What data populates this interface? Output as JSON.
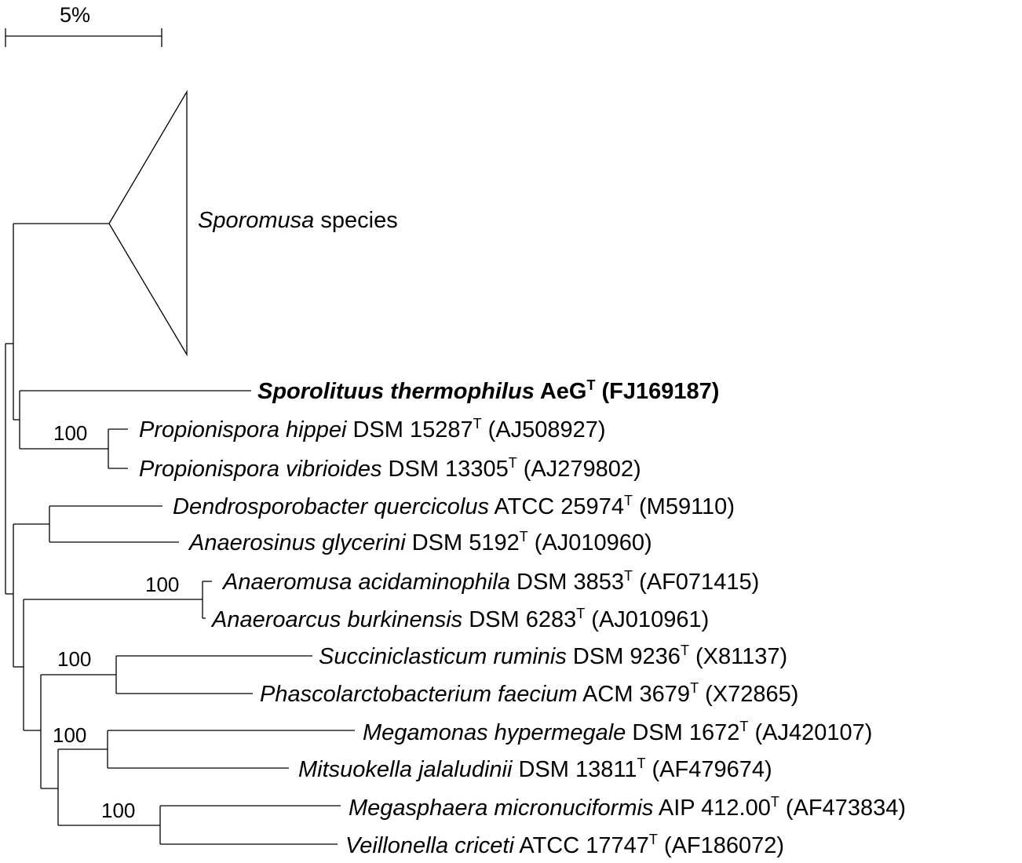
{
  "scale_bar": {
    "label": "5%"
  },
  "collapsed_clade": {
    "genus": "Sporomusa",
    "rest": " species"
  },
  "taxa": [
    {
      "genus_species": "Sporolituus thermophilus",
      "strain": " AeG",
      "sup": "T",
      "accession": " (FJ169187)"
    },
    {
      "genus_species": "Propionispora hippei",
      "strain": " DSM 15287",
      "sup": "T",
      "accession": " (AJ508927)"
    },
    {
      "genus_species": "Propionispora vibrioides",
      "strain": " DSM 13305",
      "sup": "T",
      "accession": " (AJ279802)"
    },
    {
      "genus_species": "Dendrosporobacter quercicolus",
      "strain": " ATCC 25974",
      "sup": "T",
      "accession": " (M59110)"
    },
    {
      "genus_species": "Anaerosinus glycerini",
      "strain": " DSM 5192",
      "sup": "T",
      "accession": " (AJ010960)"
    },
    {
      "genus_species": "Anaeromusa acidaminophila",
      "strain": " DSM 3853",
      "sup": "T",
      "accession": " (AF071415)"
    },
    {
      "genus_species": "Anaeroarcus burkinensis",
      "strain": " DSM 6283",
      "sup": "T",
      "accession": " (AJ010961)"
    },
    {
      "genus_species": "Succiniclasticum ruminis",
      "strain": " DSM 9236",
      "sup": "T",
      "accession": " (X81137)"
    },
    {
      "genus_species": "Phascolarctobacterium faecium",
      "strain": " ACM 3679",
      "sup": "T",
      "accession": " (X72865)"
    },
    {
      "genus_species": "Megamonas hypermegale",
      "strain": " DSM 1672",
      "sup": "T",
      "accession": " (AJ420107)"
    },
    {
      "genus_species": "Mitsuokella jalaludinii",
      "strain": " DSM 13811",
      "sup": "T",
      "accession": " (AF479674)"
    },
    {
      "genus_species": "Megasphaera micronuciformis",
      "strain": " AIP 412.00",
      "sup": "T",
      "accession": " (AF473834)"
    },
    {
      "genus_species": "Veillonella criceti",
      "strain": " ATCC 17747",
      "sup": "T",
      "accession": " (AF186072)"
    }
  ],
  "bootstrap": [
    "100",
    "100",
    "100",
    "100",
    "100"
  ]
}
